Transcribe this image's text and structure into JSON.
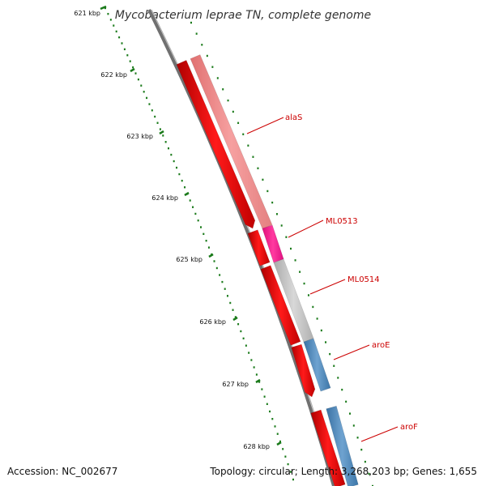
{
  "title": "Mycobacterium leprae TN, complete genome",
  "footer": {
    "accession": "Accession: NC_002677",
    "summary": "Topology: circular; Length: 3,268,203 bp; Genes: 1,655"
  },
  "colors": {
    "backbone": "#808080",
    "ticks": "#1a7a1a",
    "cds_fwd": "#ee0000",
    "gene_pink": "#f08080",
    "gene_magenta": "#ff1493",
    "gene_grey": "#c0c0c0",
    "gene_blue": "#4a86b8",
    "label": "#cc0000"
  },
  "ticks": [
    {
      "label": "621 kbp"
    },
    {
      "label": "622 kbp"
    },
    {
      "label": "623 kbp"
    },
    {
      "label": "624 kbp"
    },
    {
      "label": "625 kbp"
    },
    {
      "label": "626 kbp"
    },
    {
      "label": "627 kbp"
    },
    {
      "label": "628 kbp"
    }
  ],
  "genes": [
    {
      "name": "alaS"
    },
    {
      "name": "ML0513"
    },
    {
      "name": "ML0514"
    },
    {
      "name": "aroE"
    },
    {
      "name": "aroF"
    }
  ]
}
